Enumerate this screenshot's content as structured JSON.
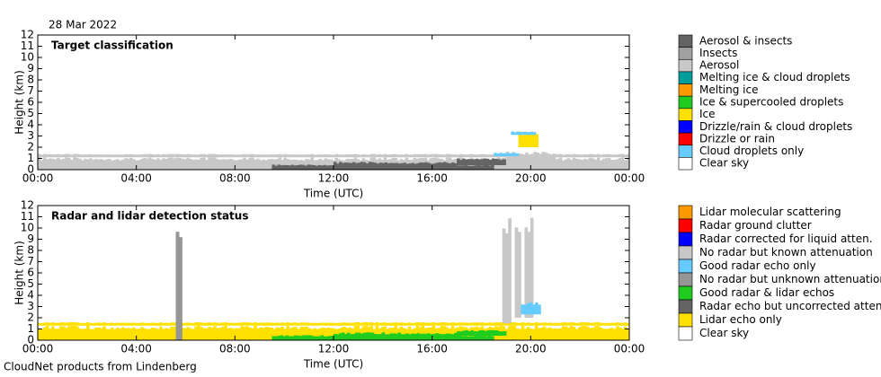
{
  "date": "28 Mar 2022",
  "footer": "CloudNet products from Lindenberg",
  "chart_data": [
    {
      "type": "image",
      "title": "Target classification",
      "xlabel": "Time (UTC)",
      "ylabel": "Height (km)",
      "xlim": [
        0,
        24
      ],
      "xticks": [
        {
          "value": 0,
          "label": "00:00"
        },
        {
          "value": 4,
          "label": "04:00"
        },
        {
          "value": 8,
          "label": "08:00"
        },
        {
          "value": 12,
          "label": "12:00"
        },
        {
          "value": 16,
          "label": "16:00"
        },
        {
          "value": 20,
          "label": "20:00"
        },
        {
          "value": 24,
          "label": "00:00"
        }
      ],
      "ylim": [
        0,
        12
      ],
      "yticks": [
        0,
        1,
        2,
        3,
        4,
        5,
        6,
        7,
        8,
        9,
        10,
        11,
        12
      ],
      "legend": [
        {
          "name": "Aerosol & insects",
          "color": "#646464"
        },
        {
          "name": "Insects",
          "color": "#a0a0a0"
        },
        {
          "name": "Aerosol",
          "color": "#c8c8c8"
        },
        {
          "name": "Melting ice & cloud droplets",
          "color": "#009d9d"
        },
        {
          "name": "Melting ice",
          "color": "#ff9900"
        },
        {
          "name": "Ice & supercooled droplets",
          "color": "#1fcc1f"
        },
        {
          "name": "Ice",
          "color": "#ffe000"
        },
        {
          "name": "Drizzle/rain & cloud droplets",
          "color": "#0000ff"
        },
        {
          "name": "Drizzle or rain",
          "color": "#ff0000"
        },
        {
          "name": "Cloud droplets only",
          "color": "#66ccff"
        },
        {
          "name": "Clear sky",
          "color": "#ffffff"
        }
      ]
    },
    {
      "type": "image",
      "title": "Radar and lidar detection status",
      "xlabel": "Time (UTC)",
      "ylabel": "Height (km)",
      "xlim": [
        0,
        24
      ],
      "xticks": [
        {
          "value": 0,
          "label": "00:00"
        },
        {
          "value": 4,
          "label": "04:00"
        },
        {
          "value": 8,
          "label": "08:00"
        },
        {
          "value": 12,
          "label": "12:00"
        },
        {
          "value": 16,
          "label": "16:00"
        },
        {
          "value": 20,
          "label": "20:00"
        },
        {
          "value": 24,
          "label": "00:00"
        }
      ],
      "ylim": [
        0,
        12
      ],
      "yticks": [
        0,
        1,
        2,
        3,
        4,
        5,
        6,
        7,
        8,
        9,
        10,
        11,
        12
      ],
      "legend": [
        {
          "name": "Lidar molecular scattering",
          "color": "#ff9900"
        },
        {
          "name": "Radar ground clutter",
          "color": "#ff0000"
        },
        {
          "name": "Radar corrected for liquid atten.",
          "color": "#0000ff"
        },
        {
          "name": "No radar but known attenuation",
          "color": "#c8c8c8"
        },
        {
          "name": "Good radar echo only",
          "color": "#66ccff"
        },
        {
          "name": "No radar but unknown attenuation",
          "color": "#969696"
        },
        {
          "name": "Good radar & lidar echos",
          "color": "#1fcc1f"
        },
        {
          "name": "Radar echo but uncorrected atten.",
          "color": "#646464"
        },
        {
          "name": "Lidar echo only",
          "color": "#ffe000"
        },
        {
          "name": "Clear sky",
          "color": "#ffffff"
        }
      ]
    }
  ]
}
